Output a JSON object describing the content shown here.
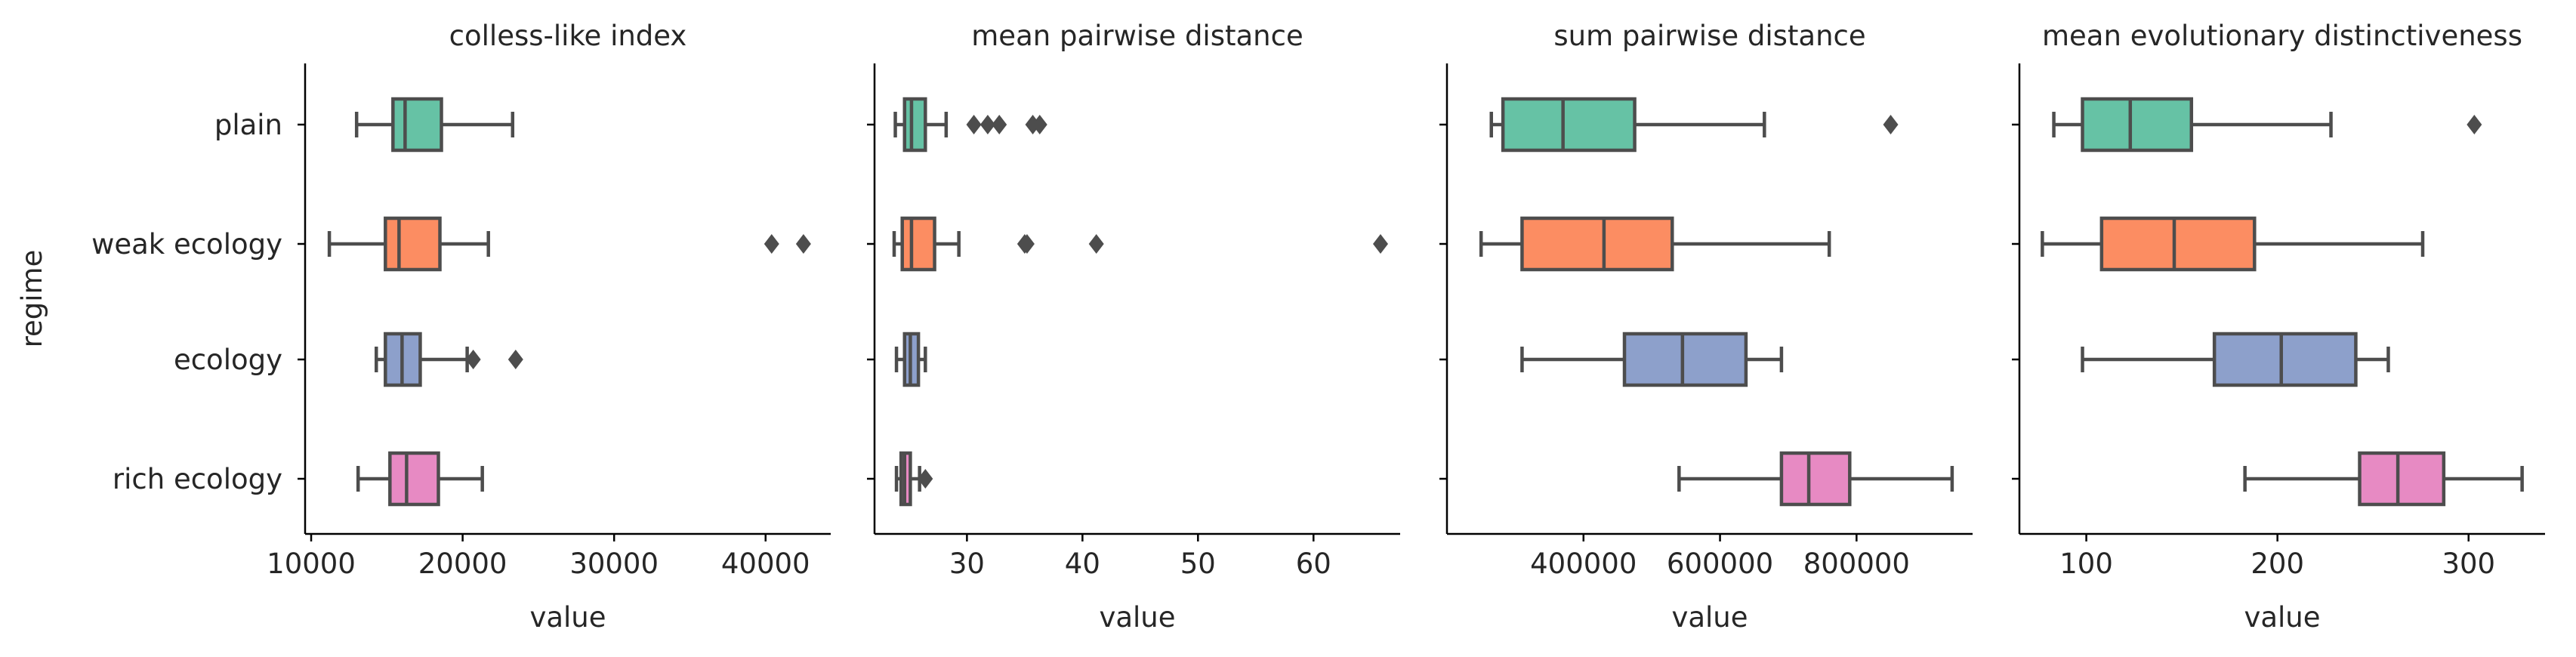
{
  "chart_data": {
    "type": "box",
    "shared_y_axis": {
      "label": "regime",
      "categories": [
        "plain",
        "weak ecology",
        "ecology",
        "rich ecology"
      ]
    },
    "palette": {
      "plain": "#66c2a5",
      "weak ecology": "#fc8d62",
      "ecology": "#8da0cb",
      "rich ecology": "#e78ac3"
    },
    "panels": [
      {
        "title": "colless-like index",
        "xlabel": "value",
        "xlim": [
          9600,
          44300
        ],
        "xticks": [
          10000,
          20000,
          30000,
          40000
        ],
        "boxes": [
          {
            "category": "plain",
            "whislo": 13000,
            "q1": 15400,
            "med": 16200,
            "q3": 18600,
            "whishi": 23300,
            "fliers": []
          },
          {
            "category": "weak ecology",
            "whislo": 11200,
            "q1": 14900,
            "med": 15800,
            "q3": 18500,
            "whishi": 21700,
            "fliers": [
              40400,
              42500
            ]
          },
          {
            "category": "ecology",
            "whislo": 14300,
            "q1": 14900,
            "med": 16000,
            "q3": 17200,
            "whishi": 20300,
            "fliers": [
              20700,
              23500
            ]
          },
          {
            "category": "rich ecology",
            "whislo": 13100,
            "q1": 15200,
            "med": 16300,
            "q3": 18400,
            "whishi": 21300,
            "fliers": []
          }
        ]
      },
      {
        "title": "mean pairwise distance",
        "xlabel": "value",
        "xlim": [
          22.0,
          67.5
        ],
        "xticks": [
          30,
          40,
          50,
          60
        ],
        "boxes": [
          {
            "category": "plain",
            "whislo": 23.8,
            "q1": 24.6,
            "med": 25.2,
            "q3": 26.4,
            "whishi": 28.2,
            "fliers": [
              30.6,
              31.8,
              32.8,
              35.7,
              36.3
            ]
          },
          {
            "category": "weak ecology",
            "whislo": 23.7,
            "q1": 24.4,
            "med": 25.2,
            "q3": 27.2,
            "whishi": 29.3,
            "fliers": [
              35.0,
              35.2,
              41.2,
              65.8
            ]
          },
          {
            "category": "ecology",
            "whislo": 23.9,
            "q1": 24.6,
            "med": 25.1,
            "q3": 25.8,
            "whishi": 26.4,
            "fliers": []
          },
          {
            "category": "rich ecology",
            "whislo": 23.9,
            "q1": 24.3,
            "med": 24.6,
            "q3": 25.1,
            "whishi": 25.9,
            "fliers": [
              26.4
            ]
          }
        ]
      },
      {
        "title": "sum pairwise distance",
        "xlabel": "value",
        "xlim": [
          200000,
          970000
        ],
        "xticks": [
          400000,
          600000,
          800000
        ],
        "boxes": [
          {
            "category": "plain",
            "whislo": 265000,
            "q1": 282000,
            "med": 370000,
            "q3": 475000,
            "whishi": 665000,
            "fliers": [
              850000
            ]
          },
          {
            "category": "weak ecology",
            "whislo": 250000,
            "q1": 310000,
            "med": 430000,
            "q3": 530000,
            "whishi": 760000,
            "fliers": []
          },
          {
            "category": "ecology",
            "whislo": 310000,
            "q1": 460000,
            "med": 545000,
            "q3": 638000,
            "whishi": 690000,
            "fliers": []
          },
          {
            "category": "rich ecology",
            "whislo": 540000,
            "q1": 690000,
            "med": 730000,
            "q3": 790000,
            "whishi": 940000,
            "fliers": []
          }
        ]
      },
      {
        "title": "mean evolutionary distinctiveness",
        "xlabel": "value",
        "xlim": [
          65,
          340
        ],
        "xticks": [
          100,
          200,
          300
        ],
        "boxes": [
          {
            "category": "plain",
            "whislo": 83,
            "q1": 98,
            "med": 123,
            "q3": 155,
            "whishi": 228,
            "fliers": [
              303
            ]
          },
          {
            "category": "weak ecology",
            "whislo": 77,
            "q1": 108,
            "med": 146,
            "q3": 188,
            "whishi": 276,
            "fliers": []
          },
          {
            "category": "ecology",
            "whislo": 98,
            "q1": 167,
            "med": 202,
            "q3": 241,
            "whishi": 258,
            "fliers": []
          },
          {
            "category": "rich ecology",
            "whislo": 183,
            "q1": 243,
            "med": 263,
            "q3": 287,
            "whishi": 328,
            "fliers": []
          }
        ]
      }
    ]
  }
}
